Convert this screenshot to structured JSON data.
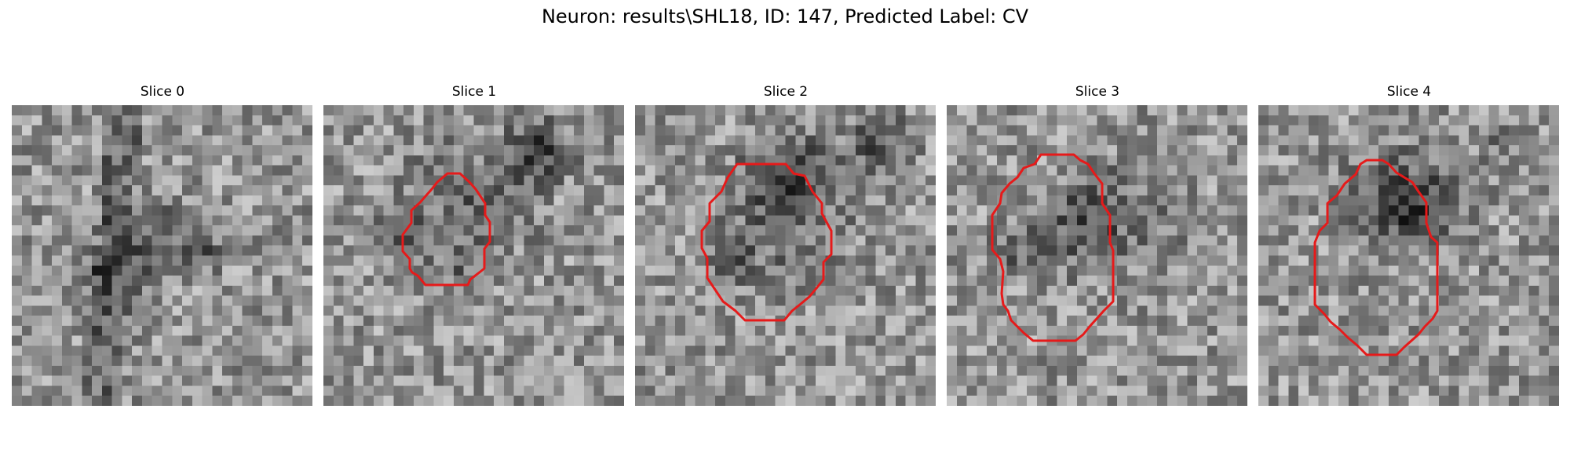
{
  "figure": {
    "title": "Neuron: results\\SHL18, ID: 147, Predicted Label: CV",
    "outline_color": "#e61a1a",
    "colormap": "gray",
    "grid_size": 30
  },
  "slices": [
    {
      "title": "Slice 0",
      "has_outline": false,
      "seed": 11
    },
    {
      "title": "Slice 1",
      "has_outline": true,
      "seed": 23
    },
    {
      "title": "Slice 2",
      "has_outline": true,
      "seed": 37
    },
    {
      "title": "Slice 3",
      "has_outline": true,
      "seed": 41
    },
    {
      "title": "Slice 4",
      "has_outline": true,
      "seed": 59
    }
  ]
}
